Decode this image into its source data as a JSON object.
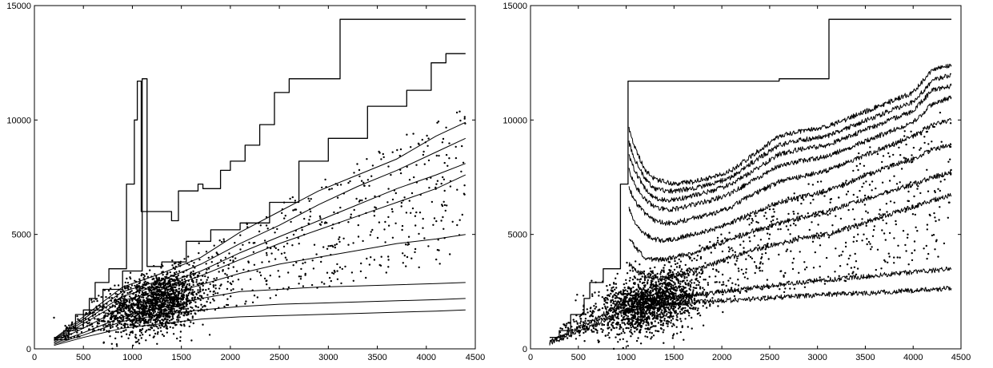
{
  "chart_data": [
    {
      "type": "scatter",
      "title": "",
      "xlabel": "",
      "ylabel": "",
      "xlim": [
        0,
        4500
      ],
      "ylim": [
        0,
        15000
      ],
      "x_ticks": [
        "0",
        "500",
        "1000",
        "1500",
        "2000",
        "2500",
        "3000",
        "3500",
        "4000",
        "4500"
      ],
      "y_ticks": [
        "0",
        "5000",
        "10000",
        "15000"
      ],
      "grid": false,
      "point_cloud": {
        "center_x": 1250,
        "center_y": 2000
      },
      "series": [
        {
          "kind": "step",
          "x": [
            200,
            300,
            300,
            420,
            420,
            560,
            560,
            620,
            620,
            760,
            760,
            940,
            940,
            1020,
            1020,
            1050,
            1050,
            1090,
            1090,
            1400,
            1400,
            1470,
            1470,
            1670,
            1670,
            1720,
            1720,
            1900,
            1900,
            2000,
            2000,
            2150,
            2150,
            2300,
            2300,
            2450,
            2450,
            2600,
            2600,
            3120,
            3120,
            4400
          ],
          "y": [
            500,
            500,
            800,
            800,
            1500,
            1500,
            2200,
            2200,
            2900,
            2900,
            3500,
            3500,
            7200,
            7200,
            10000,
            10000,
            11700,
            11700,
            6000,
            6000,
            5600,
            5600,
            6900,
            6900,
            7200,
            7200,
            7000,
            7000,
            7800,
            7800,
            8200,
            8200,
            8900,
            8900,
            9800,
            9800,
            11200,
            11200,
            11800,
            11800,
            14400,
            14400
          ]
        },
        {
          "kind": "step",
          "x": [
            200,
            350,
            350,
            500,
            500,
            700,
            700,
            900,
            900,
            1100,
            1100,
            1150,
            1150,
            1300,
            1300,
            1550,
            1550,
            1800,
            1800,
            2100,
            2100,
            2400,
            2400,
            2700,
            2700,
            3000,
            3000,
            3400,
            3400,
            3800,
            3800,
            4050,
            4050,
            4200,
            4200,
            4400
          ],
          "y": [
            400,
            400,
            900,
            900,
            1700,
            1700,
            2600,
            2600,
            3400,
            3400,
            11800,
            11800,
            3600,
            3600,
            3800,
            3800,
            4700,
            4700,
            5200,
            5200,
            5500,
            5500,
            6400,
            6400,
            8200,
            8200,
            9200,
            9200,
            10600,
            10600,
            11300,
            11300,
            12500,
            12500,
            12900,
            12900
          ]
        },
        {
          "kind": "line",
          "x": [
            200,
            500,
            900,
            1300,
            1700,
            2100,
            2500,
            2900,
            3300,
            3700,
            4100,
            4400
          ],
          "y": [
            450,
            1400,
            2700,
            3300,
            4000,
            5100,
            6000,
            6900,
            7600,
            8300,
            9300,
            9900
          ]
        },
        {
          "kind": "line",
          "x": [
            200,
            500,
            900,
            1300,
            1700,
            2100,
            2500,
            2900,
            3300,
            3700,
            4100,
            4400
          ],
          "y": [
            420,
            1300,
            2500,
            3000,
            3700,
            4600,
            5400,
            6300,
            7100,
            7800,
            8600,
            9200
          ]
        },
        {
          "kind": "line",
          "x": [
            200,
            500,
            900,
            1300,
            1700,
            2100,
            2500,
            2900,
            3300,
            3700,
            4100,
            4400
          ],
          "y": [
            380,
            1200,
            2300,
            2800,
            3400,
            4200,
            4900,
            5600,
            6300,
            7000,
            7600,
            8100
          ]
        },
        {
          "kind": "line",
          "x": [
            200,
            500,
            900,
            1300,
            1700,
            2100,
            2500,
            2900,
            3300,
            3700,
            4100,
            4400
          ],
          "y": [
            350,
            1100,
            2100,
            2600,
            3200,
            3900,
            4600,
            5200,
            5800,
            6400,
            7000,
            7600
          ]
        },
        {
          "kind": "line",
          "x": [
            200,
            500,
            900,
            1300,
            1700,
            2100,
            2500,
            2900,
            3300,
            3700,
            4100,
            4400
          ],
          "y": [
            300,
            900,
            1800,
            2300,
            2800,
            3300,
            3700,
            4000,
            4300,
            4600,
            4800,
            5000
          ]
        },
        {
          "kind": "line",
          "x": [
            200,
            500,
            900,
            1300,
            1700,
            2100,
            2500,
            2900,
            3300,
            3700,
            4100,
            4400
          ],
          "y": [
            250,
            700,
            1400,
            1800,
            2200,
            2500,
            2600,
            2700,
            2750,
            2800,
            2850,
            2900
          ]
        },
        {
          "kind": "line",
          "x": [
            200,
            500,
            900,
            1300,
            1700,
            2100,
            2500,
            2900,
            3300,
            3700,
            4100,
            4400
          ],
          "y": [
            200,
            600,
            1200,
            1500,
            1700,
            1850,
            1950,
            2000,
            2050,
            2100,
            2150,
            2200
          ]
        },
        {
          "kind": "line",
          "x": [
            200,
            500,
            900,
            1300,
            1700,
            2100,
            2500,
            2900,
            3300,
            3700,
            4100,
            4400
          ],
          "y": [
            150,
            500,
            900,
            1100,
            1300,
            1400,
            1450,
            1500,
            1550,
            1600,
            1650,
            1700
          ]
        }
      ]
    },
    {
      "type": "scatter",
      "title": "",
      "xlabel": "",
      "ylabel": "",
      "xlim": [
        0,
        4500
      ],
      "ylim": [
        0,
        15000
      ],
      "x_ticks": [
        "0",
        "500",
        "1000",
        "1500",
        "2000",
        "2500",
        "3000",
        "3500",
        "4000",
        "4500"
      ],
      "y_ticks": [
        "0",
        "5000",
        "10000",
        "15000"
      ],
      "grid": false,
      "point_cloud": {
        "center_x": 1250,
        "center_y": 2000
      },
      "series": [
        {
          "kind": "step",
          "x": [
            200,
            300,
            300,
            420,
            420,
            560,
            560,
            620,
            620,
            760,
            760,
            940,
            940,
            1020,
            1020,
            2600,
            2600,
            3120,
            3120,
            4400
          ],
          "y": [
            500,
            500,
            800,
            800,
            1500,
            1500,
            2200,
            2200,
            2900,
            2900,
            3500,
            3500,
            7200,
            7200,
            11700,
            11700,
            11800,
            11800,
            14400,
            14400
          ]
        },
        {
          "kind": "noisy",
          "x": [
            1030,
            1100,
            1200,
            1300,
            1400,
            1500,
            1700,
            1900,
            2100,
            2300,
            2600,
            2800,
            3100,
            3400,
            3700,
            4000,
            4200,
            4400
          ],
          "y": [
            9600,
            8700,
            7800,
            7400,
            7300,
            7200,
            7300,
            7500,
            7800,
            8400,
            9300,
            9500,
            9700,
            10200,
            10700,
            11200,
            12200,
            12400
          ]
        },
        {
          "kind": "noisy",
          "x": [
            1030,
            1100,
            1200,
            1300,
            1400,
            1500,
            1700,
            1900,
            2100,
            2300,
            2600,
            2800,
            3100,
            3400,
            3700,
            4000,
            4200,
            4400
          ],
          "y": [
            9000,
            8200,
            7400,
            7000,
            6900,
            6900,
            7000,
            7200,
            7500,
            8100,
            8900,
            9100,
            9300,
            9800,
            10300,
            10800,
            11700,
            12000
          ]
        },
        {
          "kind": "noisy",
          "x": [
            1030,
            1100,
            1200,
            1300,
            1400,
            1500,
            1700,
            1900,
            2100,
            2300,
            2600,
            2800,
            3100,
            3400,
            3700,
            4000,
            4200,
            4400
          ],
          "y": [
            8400,
            7700,
            7000,
            6600,
            6500,
            6500,
            6700,
            6900,
            7200,
            7700,
            8500,
            8700,
            8900,
            9400,
            9900,
            10400,
            11300,
            11500
          ]
        },
        {
          "kind": "noisy",
          "x": [
            1030,
            1100,
            1200,
            1300,
            1400,
            1500,
            1700,
            1900,
            2100,
            2300,
            2600,
            2800,
            3100,
            3400,
            3700,
            4000,
            4200,
            4400
          ],
          "y": [
            7800,
            7100,
            6500,
            6200,
            6100,
            6100,
            6300,
            6500,
            6800,
            7300,
            8000,
            8200,
            8400,
            8900,
            9400,
            9900,
            10700,
            11000
          ]
        },
        {
          "kind": "noisy",
          "x": [
            1030,
            1100,
            1200,
            1300,
            1400,
            1500,
            1700,
            1900,
            2100,
            2300,
            2600,
            2800,
            3100,
            3400,
            3700,
            4000,
            4200,
            4400
          ],
          "y": [
            7000,
            6400,
            5900,
            5600,
            5500,
            5500,
            5700,
            5900,
            6200,
            6700,
            7300,
            7500,
            7800,
            8300,
            8800,
            9300,
            9800,
            10000
          ]
        },
        {
          "kind": "noisy",
          "x": [
            1030,
            1100,
            1200,
            1300,
            1400,
            1500,
            1700,
            1900,
            2100,
            2300,
            2600,
            2800,
            3100,
            3400,
            3700,
            4000,
            4200,
            4400
          ],
          "y": [
            6100,
            5500,
            5000,
            4800,
            4700,
            4800,
            5000,
            5200,
            5500,
            5900,
            6400,
            6600,
            6900,
            7400,
            7900,
            8300,
            8700,
            8900
          ]
        },
        {
          "kind": "noisy",
          "x": [
            1030,
            1100,
            1200,
            1300,
            1400,
            1500,
            1700,
            1900,
            2100,
            2300,
            2600,
            2800,
            3100,
            3400,
            3700,
            4000,
            4200,
            4400
          ],
          "y": [
            4900,
            4400,
            4000,
            3900,
            3900,
            4000,
            4200,
            4500,
            4800,
            5100,
            5500,
            5700,
            6000,
            6400,
            6800,
            7200,
            7500,
            7700
          ]
        },
        {
          "kind": "noisy",
          "x": [
            1030,
            1100,
            1200,
            1300,
            1400,
            1500,
            1700,
            1900,
            2100,
            2300,
            2600,
            2800,
            3100,
            3400,
            3700,
            4000,
            4200,
            4400
          ],
          "y": [
            3700,
            3400,
            3200,
            3100,
            3100,
            3200,
            3400,
            3700,
            4000,
            4300,
            4600,
            4800,
            5000,
            5400,
            5800,
            6200,
            6500,
            6700
          ]
        },
        {
          "kind": "noisy",
          "x": [
            200,
            600,
            1000,
            1300,
            1600,
            2000,
            2400,
            2800,
            3200,
            3600,
            4000,
            4400
          ],
          "y": [
            300,
            1100,
            2100,
            2200,
            2300,
            2500,
            2700,
            2900,
            3050,
            3200,
            3350,
            3500
          ]
        },
        {
          "kind": "noisy",
          "x": [
            200,
            600,
            1000,
            1300,
            1600,
            2000,
            2400,
            2800,
            3200,
            3600,
            4000,
            4400
          ],
          "y": [
            250,
            900,
            1700,
            1900,
            2000,
            2100,
            2200,
            2300,
            2400,
            2450,
            2550,
            2650
          ]
        }
      ]
    }
  ]
}
